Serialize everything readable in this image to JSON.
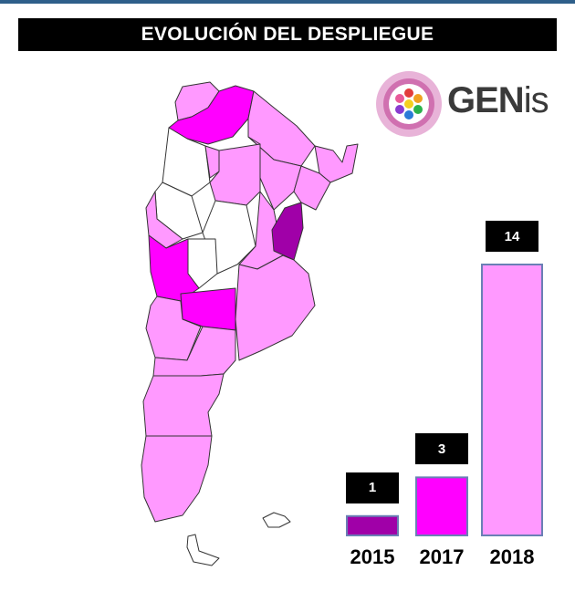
{
  "title": "EVOLUCIÓN DEL DESPLIEGUE",
  "logo": {
    "text_main": "GEN",
    "text_suffix": "is",
    "icon": "hexagon-cluster-icon"
  },
  "colors": {
    "level_2015": "#a000a8",
    "level_2017": "#ff00ff",
    "level_2018": "#ff99ff",
    "not_deployed": "#ffffff",
    "bar_border": "#6a7fb5"
  },
  "chart_data": {
    "type": "bar",
    "categories": [
      "2015",
      "2017",
      "2018"
    ],
    "values": [
      1,
      3,
      14
    ],
    "ylim": [
      0,
      14
    ],
    "title": "EVOLUCIÓN DEL DESPLIEGUE",
    "xlabel": "",
    "ylabel": ""
  }
}
